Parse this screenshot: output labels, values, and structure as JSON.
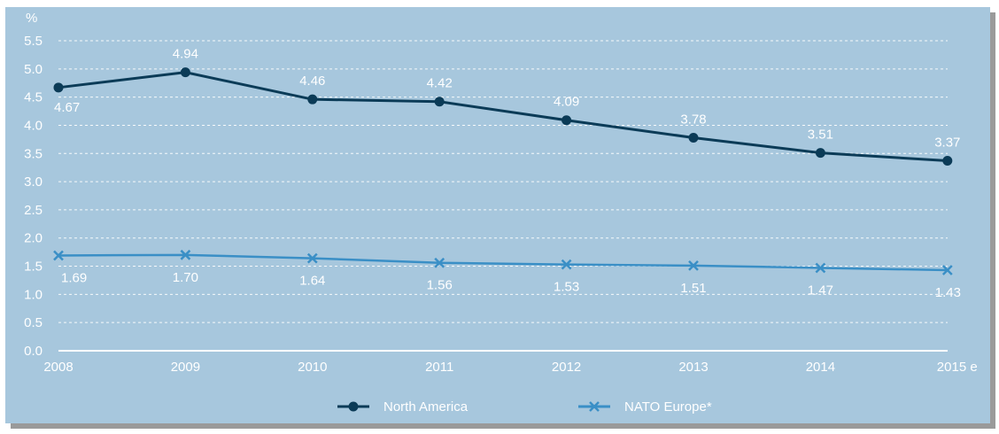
{
  "chart_data": {
    "type": "line",
    "ylabel": "%",
    "ylim": [
      0,
      5.5
    ],
    "yticks": [
      "0.0",
      "0.5",
      "1.0",
      "1.5",
      "2.0",
      "2.5",
      "3.0",
      "3.5",
      "4.0",
      "4.5",
      "5.0",
      "5.5"
    ],
    "categories": [
      "2008",
      "2009",
      "2010",
      "2011",
      "2012",
      "2013",
      "2014",
      "2015 e"
    ],
    "grid": true,
    "legend_position": "bottom-center",
    "series": [
      {
        "name": "North America",
        "values": [
          4.67,
          4.94,
          4.46,
          4.42,
          4.09,
          3.78,
          3.51,
          3.37
        ],
        "labels": [
          "4.67",
          "4.94",
          "4.46",
          "4.42",
          "4.09",
          "3.78",
          "3.51",
          "3.37"
        ],
        "color": "#0b3b57",
        "marker": "circle"
      },
      {
        "name": "NATO Europe*",
        "values": [
          1.69,
          1.7,
          1.64,
          1.56,
          1.53,
          1.51,
          1.47,
          1.43
        ],
        "labels": [
          "1.69",
          "1.70",
          "1.64",
          "1.56",
          "1.53",
          "1.51",
          "1.47",
          "1.43"
        ],
        "color": "#3a8fc6",
        "marker": "x"
      }
    ]
  },
  "colors": {
    "background": "#a7c7dd",
    "text": "#ffffff",
    "grid": "#ffffff"
  }
}
